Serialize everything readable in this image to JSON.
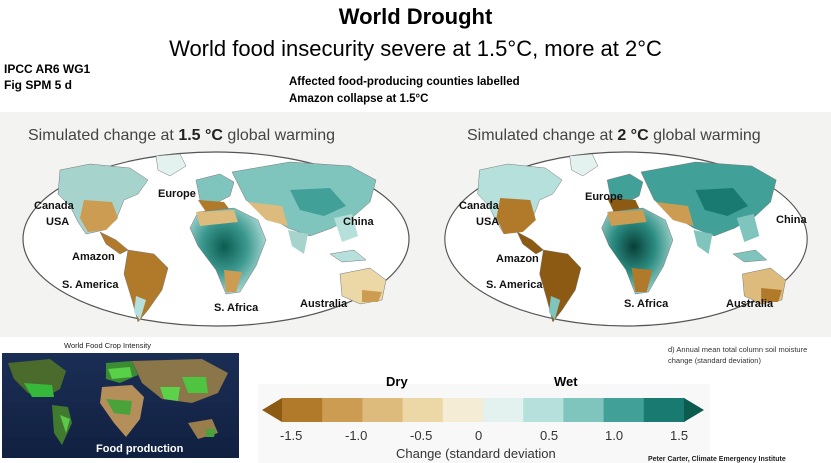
{
  "title": "World Drought",
  "subtitle": "World food insecurity severe at 1.5°C, more at 2°C",
  "reference": {
    "line1": "IPCC AR6 WG1",
    "line2": "Fig SPM 5 d"
  },
  "notes": {
    "line1": "Affected food-producing counties labelled",
    "line2": "Amazon collapse at 1.5°C"
  },
  "panels": [
    {
      "title_prefix": "Simulated change at ",
      "title_value": "1.5 °C",
      "title_suffix": " global warming",
      "labels": {
        "canada": "Canada",
        "usa": "USA",
        "europe": "Europe",
        "china": "China",
        "amazon": "Amazon",
        "s_america": "S. America",
        "s_africa": "S. Africa",
        "australia": "Australia"
      }
    },
    {
      "title_prefix": "Simulated change at ",
      "title_value": "2 °C",
      "title_suffix": " global warming",
      "labels": {
        "canada": "Canada",
        "usa": "USA",
        "europe": "Europe",
        "china": "China",
        "amazon": "Amazon",
        "s_america": "S. America",
        "s_africa": "S. Africa",
        "australia": "Australia"
      }
    }
  ],
  "footnote": "d) Annual mean total column soil moisture change (standard deviation)",
  "inset": {
    "title": "World Food Crop Intensity",
    "label": "Food production"
  },
  "legend": {
    "dry_label": "Dry",
    "wet_label": "Wet",
    "ticks": [
      "-1.5",
      "-1.0",
      "-0.5",
      "0",
      "0.5",
      "1.0",
      "1.5"
    ],
    "axis_label": "Change (standard deviation",
    "colors": [
      "#8c5a12",
      "#b07a2a",
      "#cc9c52",
      "#ddbb7c",
      "#ecd7a6",
      "#f5ecd6",
      "#e3f1ef",
      "#b6e0db",
      "#7fc5bd",
      "#41a198",
      "#187a70",
      "#0b5b4f"
    ]
  },
  "credit": "Peter Carter, Climate Emergency Institute"
}
